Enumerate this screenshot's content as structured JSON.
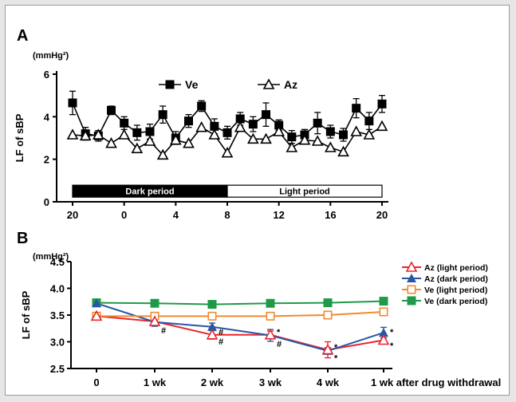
{
  "chart_data": [
    {
      "panel_label": "A",
      "type": "line",
      "unit": "(mmHg²)",
      "ylabel": "LF of sBP",
      "xlabel": "",
      "ylim": [
        0,
        6
      ],
      "yticks": [
        "0",
        "2",
        "4",
        "6"
      ],
      "x_tick_labels": [
        "20",
        "0",
        "4",
        "8",
        "12",
        "16",
        "20"
      ],
      "x_tick_positions": [
        0,
        4,
        8,
        12,
        16,
        20,
        24
      ],
      "x": [
        0,
        1,
        2,
        3,
        4,
        5,
        6,
        7,
        8,
        9,
        10,
        11,
        12,
        13,
        14,
        15,
        16,
        17,
        18,
        19,
        20,
        21,
        22,
        23,
        24
      ],
      "periods": [
        {
          "label": "Dark period",
          "start": 0,
          "end": 12,
          "fill": "#000000",
          "text_color": "#ffffff"
        },
        {
          "label": "Light period",
          "start": 12,
          "end": 24,
          "fill": "#ffffff",
          "text_color": "#000000"
        }
      ],
      "series": [
        {
          "name": "Ve",
          "marker": "square",
          "values": [
            4.65,
            3.2,
            3.1,
            4.3,
            3.7,
            3.25,
            3.3,
            4.1,
            3.0,
            3.8,
            4.5,
            3.55,
            3.25,
            3.9,
            3.65,
            4.1,
            3.6,
            3.05,
            3.15,
            3.7,
            3.3,
            3.15,
            4.4,
            3.8,
            4.6
          ],
          "errors": [
            0.55,
            0.3,
            0.25,
            0.2,
            0.3,
            0.35,
            0.35,
            0.4,
            0.3,
            0.3,
            0.25,
            0.35,
            0.3,
            0.3,
            0.35,
            0.55,
            0.25,
            0.3,
            0.25,
            0.5,
            0.3,
            0.3,
            0.45,
            0.4,
            0.4
          ]
        },
        {
          "name": "Az",
          "marker": "triangle-open",
          "values": [
            3.15,
            3.1,
            3.15,
            2.75,
            3.15,
            2.5,
            2.85,
            2.2,
            2.9,
            2.75,
            3.5,
            3.15,
            2.3,
            3.5,
            2.95,
            2.95,
            3.3,
            2.55,
            2.9,
            2.85,
            2.55,
            2.35,
            3.3,
            3.15,
            3.55
          ]
        }
      ]
    },
    {
      "panel_label": "B",
      "type": "line",
      "unit": "(mmHg²)",
      "ylabel": "LF of sBP",
      "xlabel": "",
      "ylim": [
        2.5,
        4.5
      ],
      "yticks": [
        "2.5",
        "3.0",
        "3.5",
        "4.0",
        "4.5"
      ],
      "categories": [
        "0",
        "1 wk",
        "2 wk",
        "3 wk",
        "4 wk",
        "1 wk after drug withdrawal"
      ],
      "legend_position": "right",
      "series": [
        {
          "name": "Az (light period)",
          "color": "#e8262c",
          "marker": "triangle-open",
          "values": [
            3.48,
            3.38,
            3.13,
            3.13,
            2.85,
            3.03
          ],
          "errors": [
            0.05,
            0.06,
            0.08,
            0.07,
            0.15,
            0.07
          ]
        },
        {
          "name": "Az (dark period)",
          "color": "#2756a5",
          "marker": "triangle",
          "values": [
            3.72,
            3.37,
            3.28,
            3.12,
            2.83,
            3.17
          ],
          "errors": [
            0.0,
            0.08,
            0.07,
            0.11,
            0.06,
            0.1
          ]
        },
        {
          "name": "Ve (light period)",
          "color": "#f28a2e",
          "marker": "square-open",
          "values": [
            3.48,
            3.48,
            3.48,
            3.48,
            3.5,
            3.56
          ],
          "errors": [
            0.06,
            0.05,
            0.03,
            0.04,
            0.04,
            0.03
          ]
        },
        {
          "name": "Ve (dark period)",
          "color": "#1f9a48",
          "marker": "square",
          "values": [
            3.73,
            3.72,
            3.7,
            3.72,
            3.73,
            3.76
          ],
          "errors": [
            0.0,
            0.0,
            0.0,
            0.0,
            0.0,
            0.0
          ]
        }
      ],
      "annotations": [
        {
          "text": "#",
          "category_index": 1,
          "value": 3.23
        },
        {
          "text": "#",
          "category_index": 2,
          "value": 3.2
        },
        {
          "text": "#",
          "category_index": 2,
          "value": 3.02
        },
        {
          "text": "*",
          "category_index": 3,
          "value": 3.2
        },
        {
          "text": "#",
          "category_index": 3,
          "value": 2.98
        },
        {
          "text": "*",
          "category_index": 4,
          "value": 2.92
        },
        {
          "text": "*",
          "category_index": 4,
          "value": 2.72
        },
        {
          "text": "*",
          "category_index": 5,
          "value": 3.2
        },
        {
          "text": "*",
          "category_index": 5,
          "value": 2.95
        }
      ]
    }
  ]
}
